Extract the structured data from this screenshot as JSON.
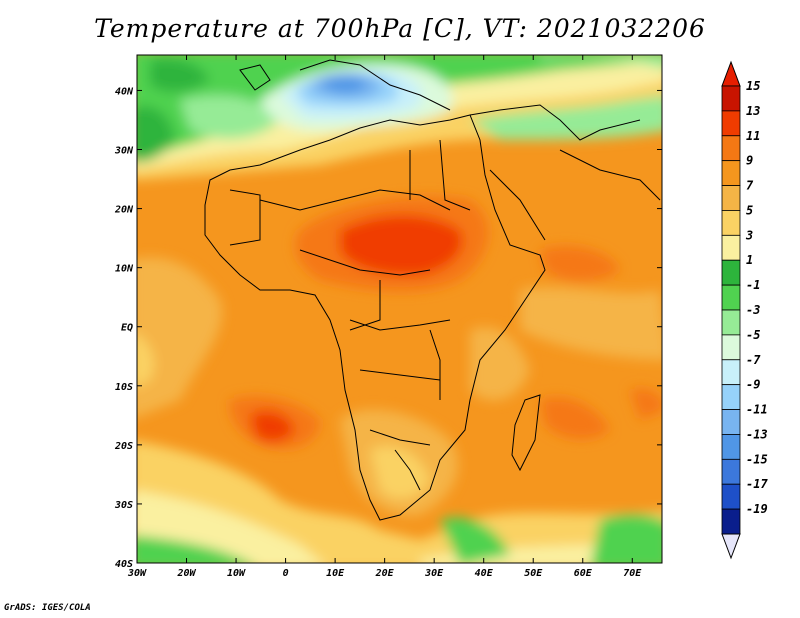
{
  "title": "Temperature at 700hPa [C], VT: 2021032206",
  "credit": "GrADS: IGES/COLA",
  "map": {
    "lon_range": [
      -30,
      76
    ],
    "lat_range": [
      -40,
      46
    ],
    "lon_ticks": [
      {
        "value": -30,
        "label": "30W"
      },
      {
        "value": -20,
        "label": "20W"
      },
      {
        "value": -10,
        "label": "10W"
      },
      {
        "value": 0,
        "label": "0"
      },
      {
        "value": 10,
        "label": "10E"
      },
      {
        "value": 20,
        "label": "20E"
      },
      {
        "value": 30,
        "label": "30E"
      },
      {
        "value": 40,
        "label": "40E"
      },
      {
        "value": 50,
        "label": "50E"
      },
      {
        "value": 60,
        "label": "60E"
      },
      {
        "value": 70,
        "label": "70E"
      }
    ],
    "lat_ticks": [
      {
        "value": 40,
        "label": "40N"
      },
      {
        "value": 30,
        "label": "30N"
      },
      {
        "value": 20,
        "label": "20N"
      },
      {
        "value": 10,
        "label": "10N"
      },
      {
        "value": 0,
        "label": "EQ"
      },
      {
        "value": -10,
        "label": "10S"
      },
      {
        "value": -20,
        "label": "20S"
      },
      {
        "value": -30,
        "label": "30S"
      },
      {
        "value": -40,
        "label": "40S"
      }
    ]
  },
  "colorbar": {
    "levels": [
      {
        "label": "15",
        "color": "#c81400"
      },
      {
        "label": "13",
        "color": "#f03c00"
      },
      {
        "label": "11",
        "color": "#f57814"
      },
      {
        "label": "9",
        "color": "#f5961e"
      },
      {
        "label": "7",
        "color": "#f5b446"
      },
      {
        "label": "5",
        "color": "#fad264"
      },
      {
        "label": "3",
        "color": "#faf0a0"
      },
      {
        "label": "1",
        "color": "#2db43c"
      },
      {
        "label": "-1",
        "color": "#50d250"
      },
      {
        "label": "-3",
        "color": "#96eb96"
      },
      {
        "label": "-5",
        "color": "#dcfadc"
      },
      {
        "label": "-7",
        "color": "#c8f0fa"
      },
      {
        "label": "-9",
        "color": "#96d2fa"
      },
      {
        "label": "-11",
        "color": "#78b4f0"
      },
      {
        "label": "-13",
        "color": "#5096e6"
      },
      {
        "label": "-15",
        "color": "#3c78dc"
      },
      {
        "label": "-17",
        "color": "#1e50c8"
      },
      {
        "label": "-19",
        "color": "#0a1e8c"
      }
    ],
    "top_color": "#e61e00",
    "bottom_color": "#e6e6fa"
  }
}
